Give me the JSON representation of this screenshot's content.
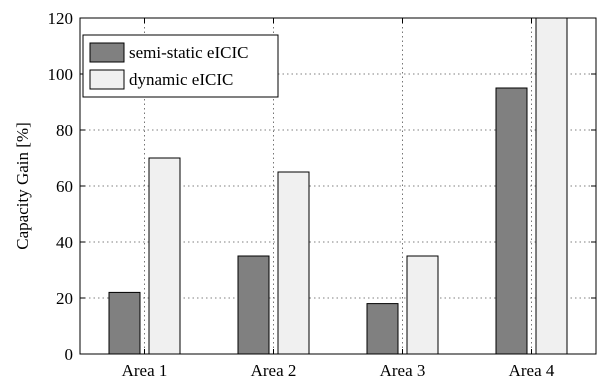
{
  "chart_data": {
    "type": "bar",
    "title": "",
    "xlabel": "",
    "ylabel": "Capacity Gain [%]",
    "categories": [
      "Area 1",
      "Area 2",
      "Area 3",
      "Area 4"
    ],
    "ylim": [
      0,
      120
    ],
    "yticks": [
      0,
      20,
      40,
      60,
      80,
      100,
      120
    ],
    "grid": true,
    "legend_position": "top-left",
    "series": [
      {
        "name": "semi-static eICIC",
        "values": [
          22,
          35,
          18,
          95
        ],
        "color": "#808080"
      },
      {
        "name": "dynamic eICIC",
        "values": [
          70,
          65,
          35,
          120
        ],
        "color": "#f0f0f0"
      }
    ]
  }
}
